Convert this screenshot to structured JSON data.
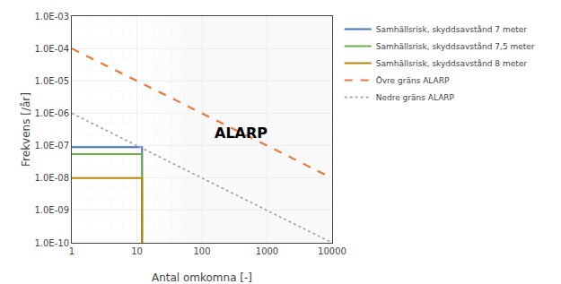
{
  "chart_data": {
    "type": "line",
    "title": "",
    "xlabel": "Antal omkomna [-]",
    "ylabel": "Frekvens [/år]",
    "log": true,
    "grid": true,
    "legend": "right",
    "xlim": [
      1,
      10000
    ],
    "ylim": [
      1e-10,
      0.001
    ],
    "xticks": [
      1,
      10,
      100,
      1000,
      10000
    ],
    "yticks": [
      {
        "value": 1e-10,
        "label": "1.0E-10"
      },
      {
        "value": 1e-09,
        "label": "1.0E-09"
      },
      {
        "value": 1e-08,
        "label": "1.0E-08"
      },
      {
        "value": 1e-07,
        "label": "1.0E-07"
      },
      {
        "value": 1e-06,
        "label": "1.0E-06"
      },
      {
        "value": 1e-05,
        "label": "1.0E-05"
      },
      {
        "value": 0.0001,
        "label": "1.0E-04"
      },
      {
        "value": 0.001,
        "label": "1.0E-03"
      }
    ],
    "series": [
      {
        "name": "Samhällsrisk, skyddsavstånd 7 meter",
        "color": "#4472C4",
        "line_style": "solid",
        "x": [
          1,
          12,
          12
        ],
        "values": [
          9e-08,
          9e-08,
          1e-10
        ]
      },
      {
        "name": "Samhällsrisk, skyddsavstånd 7,5 meter",
        "color": "#70AD47",
        "line_style": "solid",
        "x": [
          1,
          12,
          12
        ],
        "values": [
          5.5e-08,
          5.5e-08,
          1e-10
        ]
      },
      {
        "name": "Samhällsrisk, skyddsavstånd 8 meter",
        "color": "#B8860B",
        "line_style": "solid",
        "x": [
          1,
          12,
          12
        ],
        "values": [
          1e-08,
          1e-08,
          1e-10
        ]
      },
      {
        "name": "Övre gräns ALARP",
        "color": "#E8783C",
        "line_style": "dashed",
        "x": [
          1,
          10000
        ],
        "values": [
          0.0001,
          1e-08
        ]
      },
      {
        "name": "Nedre gräns ALARP",
        "color": "#AAAAAA",
        "line_style": "dotted",
        "x": [
          1,
          10000
        ],
        "values": [
          1e-06,
          1e-10
        ]
      }
    ],
    "annotations": [
      {
        "text": "ALARP",
        "x": 400,
        "y": 2.5e-07
      }
    ]
  }
}
